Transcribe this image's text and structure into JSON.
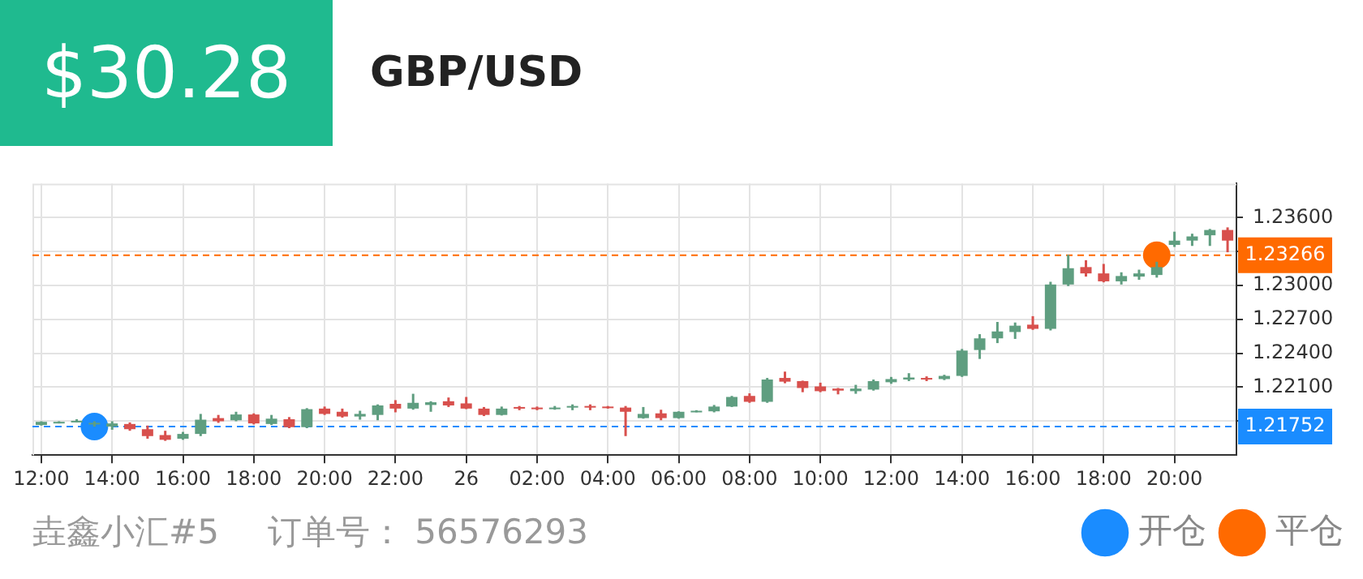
{
  "chart_data": {
    "type": "candlestick",
    "title": "GBP/USD",
    "subtitle": "$30.28",
    "annotations": [
      "垚鑫小汇#5",
      "订单号： 56576293"
    ],
    "x": [
      "--01-25T12:00",
      "--01-25T12:30",
      "--01-25T13:00",
      "--01-25T13:30",
      "--01-25T14:00",
      "--01-25T14:30",
      "--01-25T15:00",
      "--01-25T15:30",
      "--01-25T16:00",
      "--01-25T16:30",
      "--01-25T17:00",
      "--01-25T17:30",
      "--01-25T18:00",
      "--01-25T18:30",
      "--01-25T19:00",
      "--01-25T19:30",
      "--01-25T20:00",
      "--01-25T20:30",
      "--01-25T21:00",
      "--01-25T21:30",
      "--01-25T22:00",
      "--01-25T22:30",
      "--01-25T23:00",
      "--01-25T23:30",
      "--01-26T00:00",
      "--01-26T00:30",
      "--01-26T01:00",
      "--01-26T01:30",
      "--01-26T02:00",
      "--01-26T02:30",
      "--01-26T03:00",
      "--01-26T03:30",
      "--01-26T04:00",
      "--01-26T04:30",
      "--01-26T05:00",
      "--01-26T05:30",
      "--01-26T06:00",
      "--01-26T06:30",
      "--01-26T07:00",
      "--01-26T07:30",
      "--01-26T08:00",
      "--01-26T08:30",
      "--01-26T09:00",
      "--01-26T09:30",
      "--01-26T10:00",
      "--01-26T10:30",
      "--01-26T11:00",
      "--01-26T11:30",
      "--01-26T12:00",
      "--01-26T12:30",
      "--01-26T13:00",
      "--01-26T13:30",
      "--01-26T14:00",
      "--01-26T14:30",
      "--01-26T15:00",
      "--01-26T15:30",
      "--01-26T16:00",
      "--01-26T16:30",
      "--01-26T17:00",
      "--01-26T17:30",
      "--01-26T18:00",
      "--01-26T18:30",
      "--01-26T19:00",
      "--01-26T19:30",
      "--01-26T20:00",
      "--01-26T20:30",
      "--01-26T21:00",
      "--01-26T21:30"
    ],
    "ohlc": [
      [
        1.21766,
        1.21799,
        1.21761,
        1.21794
      ],
      [
        1.21785,
        1.21799,
        1.2178,
        1.21794
      ],
      [
        1.21794,
        1.21817,
        1.21789,
        1.21803
      ],
      [
        1.21771,
        1.21799,
        1.21752,
        1.21785
      ],
      [
        1.21752,
        1.21799,
        1.21724,
        1.2178
      ],
      [
        1.21775,
        1.21789,
        1.21715,
        1.21729
      ],
      [
        1.21729,
        1.21761,
        1.21645,
        1.21668
      ],
      [
        1.21677,
        1.21715,
        1.21626,
        1.21635
      ],
      [
        1.21645,
        1.21705,
        1.21635,
        1.21687
      ],
      [
        1.21687,
        1.21864,
        1.21668,
        1.21813
      ],
      [
        1.21827,
        1.21855,
        1.21785,
        1.21799
      ],
      [
        1.21808,
        1.21883,
        1.21799,
        1.21859
      ],
      [
        1.21859,
        1.21869,
        1.21771,
        1.2178
      ],
      [
        1.21775,
        1.21855,
        1.21766,
        1.21822
      ],
      [
        1.21817,
        1.21836,
        1.21738,
        1.21747
      ],
      [
        1.21747,
        1.21915,
        1.21738,
        1.21906
      ],
      [
        1.21911,
        1.21929,
        1.21855,
        1.21864
      ],
      [
        1.21883,
        1.21911,
        1.21831,
        1.21841
      ],
      [
        1.21841,
        1.21892,
        1.21813,
        1.21864
      ],
      [
        1.21855,
        1.21948,
        1.21808,
        1.21939
      ],
      [
        1.21953,
        1.21986,
        1.21878,
        1.21911
      ],
      [
        1.21911,
        1.22042,
        1.21901,
        1.21962
      ],
      [
        1.21943,
        1.21976,
        1.21883,
        1.21967
      ],
      [
        1.21976,
        1.22009,
        1.21925,
        1.21939
      ],
      [
        1.21957,
        1.22014,
        1.21906,
        1.21911
      ],
      [
        1.21911,
        1.21925,
        1.21845,
        1.21855
      ],
      [
        1.21855,
        1.21929,
        1.2185,
        1.21911
      ],
      [
        1.21925,
        1.21934,
        1.21897,
        1.21911
      ],
      [
        1.2192,
        1.21929,
        1.21897,
        1.21911
      ],
      [
        1.21911,
        1.21934,
        1.21901,
        1.2192
      ],
      [
        1.21925,
        1.21948,
        1.21897,
        1.21934
      ],
      [
        1.21934,
        1.21948,
        1.21897,
        1.21925
      ],
      [
        1.21929,
        1.21934,
        1.21911,
        1.2192
      ],
      [
        1.2192,
        1.21934,
        1.21668,
        1.21883
      ],
      [
        1.21827,
        1.21925,
        1.21822,
        1.21864
      ],
      [
        1.21869,
        1.21901,
        1.21808,
        1.21827
      ],
      [
        1.21827,
        1.21887,
        1.21822,
        1.21883
      ],
      [
        1.21883,
        1.21897,
        1.21878,
        1.21892
      ],
      [
        1.21887,
        1.21943,
        1.21878,
        1.21929
      ],
      [
        1.21929,
        1.22023,
        1.21925,
        1.22014
      ],
      [
        1.22023,
        1.22046,
        1.21962,
        1.21971
      ],
      [
        1.21971,
        1.22182,
        1.21962,
        1.22168
      ],
      [
        1.22182,
        1.22238,
        1.22135,
        1.22149
      ],
      [
        1.22154,
        1.22158,
        1.22056,
        1.22093
      ],
      [
        1.22107,
        1.2214,
        1.22056,
        1.22065
      ],
      [
        1.22088,
        1.22093,
        1.22037,
        1.2207
      ],
      [
        1.22065,
        1.22121,
        1.22042,
        1.22088
      ],
      [
        1.22079,
        1.22168,
        1.2207,
        1.22154
      ],
      [
        1.22144,
        1.22191,
        1.2213,
        1.22172
      ],
      [
        1.22168,
        1.22224,
        1.22154,
        1.22186
      ],
      [
        1.22182,
        1.22196,
        1.22154,
        1.22168
      ],
      [
        1.22172,
        1.2221,
        1.22163,
        1.222
      ],
      [
        1.222,
        1.22438,
        1.22191,
        1.22424
      ],
      [
        1.22429,
        1.22569,
        1.2235,
        1.22532
      ],
      [
        1.22532,
        1.22677,
        1.2249,
        1.22593
      ],
      [
        1.22588,
        1.22672,
        1.22527,
        1.22644
      ],
      [
        1.22653,
        1.22728,
        1.22607,
        1.22616
      ],
      [
        1.22616,
        1.23032,
        1.22602,
        1.23008
      ],
      [
        1.23008,
        1.2327,
        1.22994,
        1.23152
      ],
      [
        1.23162,
        1.23223,
        1.23078,
        1.23106
      ],
      [
        1.23106,
        1.2319,
        1.23027,
        1.23036
      ],
      [
        1.23036,
        1.23116,
        1.23008,
        1.23083
      ],
      [
        1.23078,
        1.23139,
        1.2305,
        1.23106
      ],
      [
        1.23092,
        1.23209,
        1.23069,
        1.23162
      ],
      [
        1.23358,
        1.23475,
        1.2334,
        1.23396
      ],
      [
        1.23396,
        1.23457,
        1.23349,
        1.23433
      ],
      [
        1.23443,
        1.23499,
        1.23349,
        1.2349
      ],
      [
        1.2349,
        1.23513,
        1.23293,
        1.23396
      ]
    ],
    "colors": [
      "#5f9e80",
      "#5f9e80",
      "#5f9e80",
      "#5f9e80",
      "#5f9e80",
      "#d8504d",
      "#d8504d",
      "#d8504d",
      "#5f9e80",
      "#5f9e80",
      "#d8504d",
      "#5f9e80",
      "#d8504d",
      "#5f9e80",
      "#d8504d",
      "#5f9e80",
      "#d8504d",
      "#d8504d",
      "#5f9e80",
      "#5f9e80",
      "#d8504d",
      "#5f9e80",
      "#5f9e80",
      "#d8504d",
      "#d8504d",
      "#d8504d",
      "#5f9e80",
      "#d8504d",
      "#d8504d",
      "#5f9e80",
      "#5f9e80",
      "#d8504d",
      "#d8504d",
      "#d8504d",
      "#5f9e80",
      "#d8504d",
      "#5f9e80",
      "#5f9e80",
      "#5f9e80",
      "#5f9e80",
      "#d8504d",
      "#5f9e80",
      "#d8504d",
      "#d8504d",
      "#d8504d",
      "#d8504d",
      "#5f9e80",
      "#5f9e80",
      "#5f9e80",
      "#5f9e80",
      "#d8504d",
      "#5f9e80",
      "#5f9e80",
      "#5f9e80",
      "#5f9e80",
      "#5f9e80",
      "#d8504d",
      "#5f9e80",
      "#5f9e80",
      "#d8504d",
      "#d8504d",
      "#5f9e80",
      "#5f9e80",
      "#5f9e80",
      "#5f9e80",
      "#5f9e80",
      "#5f9e80",
      "#d8504d"
    ],
    "series": [
      {
        "type": "scatter",
        "name": "开仓",
        "color": "#1a8cff",
        "x": [
          "--01-25T13:30"
        ],
        "values": [
          1.21752
        ]
      },
      {
        "type": "scatter",
        "name": "平仓",
        "color": "#ff6a00",
        "x": [
          "--01-26T19:30"
        ],
        "values": [
          1.23266
        ]
      }
    ],
    "marker": "circle",
    "xlim": [
      "--01-25T11:45",
      "--01-26T21:45"
    ],
    "xticks": [
      {
        "value": "--01-25T12:00",
        "label": "12:00"
      },
      {
        "value": "--01-25T14:00",
        "label": "14:00"
      },
      {
        "value": "--01-25T16:00",
        "label": "16:00"
      },
      {
        "value": "--01-25T18:00",
        "label": "18:00"
      },
      {
        "value": "--01-25T20:00",
        "label": "20:00"
      },
      {
        "value": "--01-25T22:00",
        "label": "22:00"
      },
      {
        "value": "--01-26T00:00",
        "label": "26"
      },
      {
        "value": "--01-26T02:00",
        "label": "02:00"
      },
      {
        "value": "--01-26T04:00",
        "label": "04:00"
      },
      {
        "value": "--01-26T06:00",
        "label": "06:00"
      },
      {
        "value": "--01-26T08:00",
        "label": "08:00"
      },
      {
        "value": "--01-26T10:00",
        "label": "10:00"
      },
      {
        "value": "--01-26T12:00",
        "label": "12:00"
      },
      {
        "value": "--01-26T14:00",
        "label": "14:00"
      },
      {
        "value": "--01-26T16:00",
        "label": "16:00"
      },
      {
        "value": "--01-26T18:00",
        "label": "18:00"
      },
      {
        "value": "--01-26T20:00",
        "label": "20:00"
      }
    ],
    "ylim": [
      1.215,
      1.239
    ],
    "yticks": [
      {
        "value": 1.218,
        "label": null
      },
      {
        "value": 1.221,
        "label": "1.22100"
      },
      {
        "value": 1.224,
        "label": "1.22400"
      },
      {
        "value": 1.227,
        "label": "1.22700"
      },
      {
        "value": 1.23,
        "label": "1.23000"
      },
      {
        "value": 1.233,
        "label": null
      },
      {
        "value": 1.236,
        "label": "1.23600"
      }
    ],
    "ref_lines": [
      {
        "axis": "y",
        "value": 1.23266,
        "label": "1.23266",
        "color": "#ff6a00",
        "line_style": "dashed"
      },
      {
        "axis": "y",
        "value": 1.21752,
        "label": "1.21752",
        "color": "#1a8cff",
        "line_style": "dashed"
      }
    ],
    "grid": true,
    "legend": "bottom right"
  }
}
